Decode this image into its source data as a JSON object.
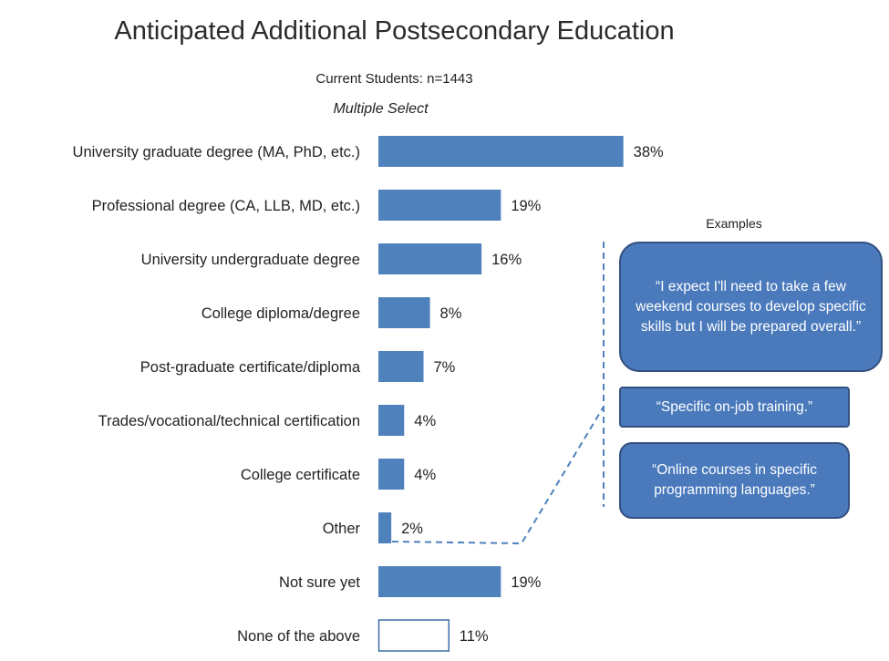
{
  "chart_data": {
    "type": "bar",
    "orientation": "horizontal",
    "title": "Anticipated Additional Postsecondary Education",
    "subtitle": "Current Students: n=1443",
    "note": "Multiple Select",
    "categories": [
      "University graduate degree (MA, PhD, etc.)",
      "Professional degree (CA, LLB, MD, etc.)",
      "University undergraduate degree",
      "College diploma/degree",
      "Post-graduate certificate/diploma",
      "Trades/vocational/technical certification",
      "College certificate",
      "Other",
      "Not sure yet",
      "None of the above"
    ],
    "values": [
      38,
      19,
      16,
      8,
      7,
      4,
      4,
      2,
      19,
      11
    ],
    "value_labels": [
      "38%",
      "19%",
      "16%",
      "8%",
      "7%",
      "4%",
      "4%",
      "2%",
      "19%",
      "11%"
    ],
    "outlined": [
      false,
      false,
      false,
      false,
      false,
      false,
      false,
      false,
      false,
      true
    ],
    "xlim": [
      0,
      40
    ],
    "grid": false,
    "colors": {
      "bar": "#4f81bd",
      "bar_outline": "#3e6ea9",
      "callout_fill": "#4a7abc",
      "callout_border": "#33507f",
      "dashed_line": "#4f81bd"
    }
  },
  "examples": {
    "title": "Examples",
    "links_to": "Other",
    "quotes": [
      "“I expect I'll need to take a few weekend courses to develop specific skills but I will be prepared overall.”",
      "“Specific on-job training.”",
      "“Online courses in specific programming languages.”"
    ]
  }
}
